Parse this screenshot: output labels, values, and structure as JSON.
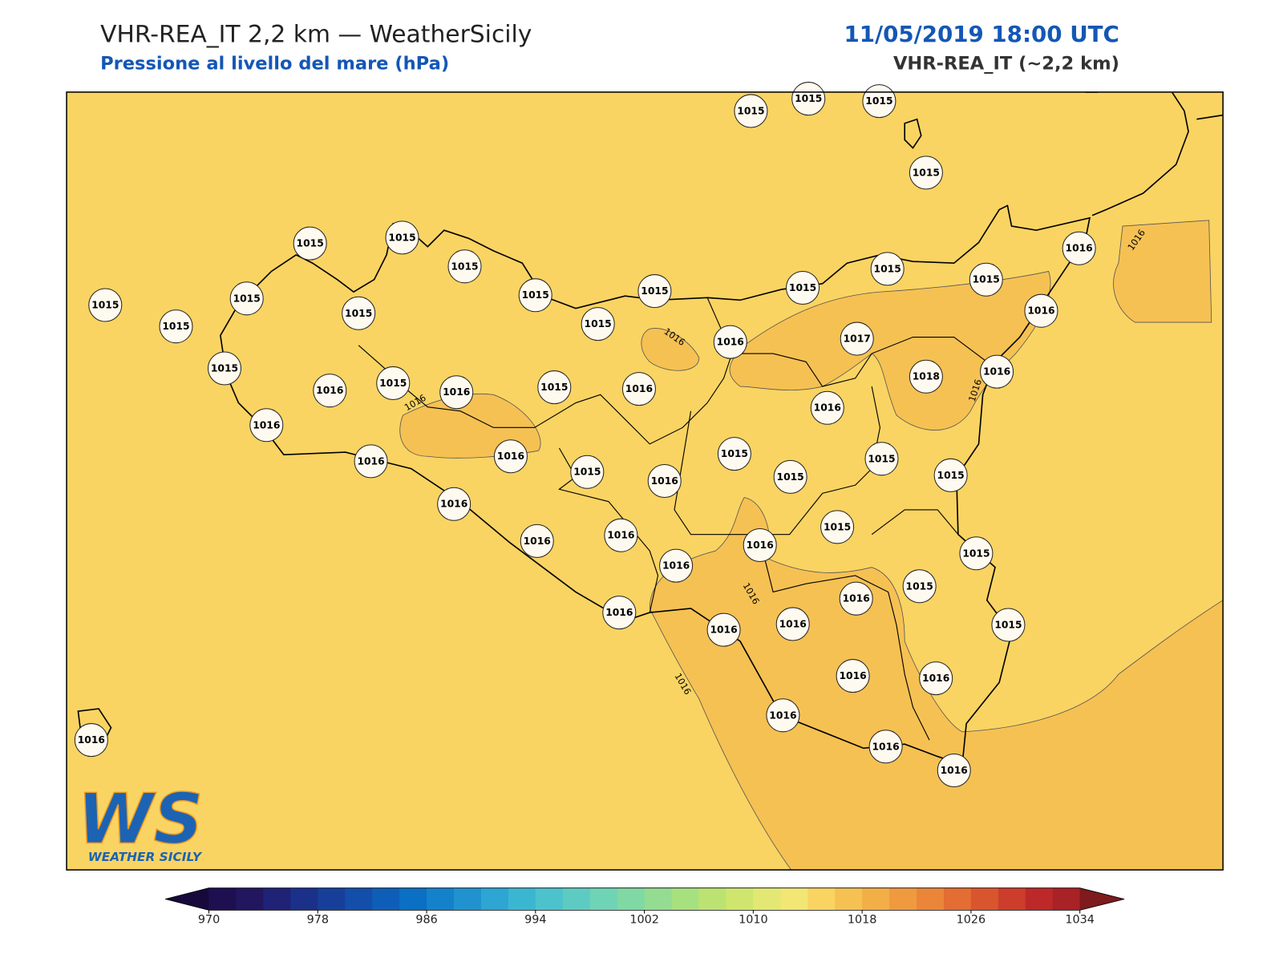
{
  "header": {
    "title": "VHR-REA_IT 2,2 km — WeatherSicily",
    "subtitle": "Pressione al livello del mare (hPa)",
    "datetime": "11/05/2019 18:00 UTC",
    "model": "VHR-REA_IT (~2,2 km)"
  },
  "stations": [
    1015,
    1015,
    1015,
    1015,
    1015,
    1015,
    1015,
    1015,
    1015,
    1015,
    1015,
    1015,
    1016,
    1015,
    1015,
    1015,
    1015,
    1015,
    1016,
    1017,
    1016,
    1015,
    1016,
    1015,
    1016,
    1015,
    1016,
    1018,
    1016,
    1016,
    1016,
    1016,
    1016,
    1015,
    1016,
    1015,
    1015,
    1015,
    1015,
    1016,
    1016,
    1016,
    1015,
    1016,
    1016,
    1015,
    1015,
    1016,
    1016,
    1016,
    1016,
    1015,
    1016,
    1016,
    1016,
    1016,
    1016,
    1016
  ],
  "contour_labels": [
    1016,
    1016,
    1016,
    1016,
    1016,
    1016
  ],
  "colorbar": {
    "range": [
      970,
      1034
    ],
    "ticks": [
      970,
      978,
      986,
      994,
      1002,
      1010,
      1018,
      1026,
      1034
    ],
    "colors": [
      "#1e1050",
      "#22165f",
      "#1f2275",
      "#1b3088",
      "#173f9a",
      "#134eaa",
      "#0e5eb8",
      "#0b6fc3",
      "#1481cb",
      "#2092cf",
      "#2ea5d2",
      "#3bb6d1",
      "#4cc2cc",
      "#5ecbc3",
      "#6fd3b6",
      "#80d8a4",
      "#93dc91",
      "#a7e07f",
      "#bce371",
      "#cfe66e",
      "#e2e873",
      "#f2e674",
      "#fad462",
      "#f6c153",
      "#f2ae47",
      "#ef9a3f",
      "#ea853a",
      "#e36d33",
      "#d9552e",
      "#cc3e2b",
      "#bc2928",
      "#a82226"
    ],
    "under_color": "#18093d",
    "over_color": "#7d1b1d"
  },
  "logo": {
    "mark": "WS",
    "name": "WEATHER SICILY"
  }
}
